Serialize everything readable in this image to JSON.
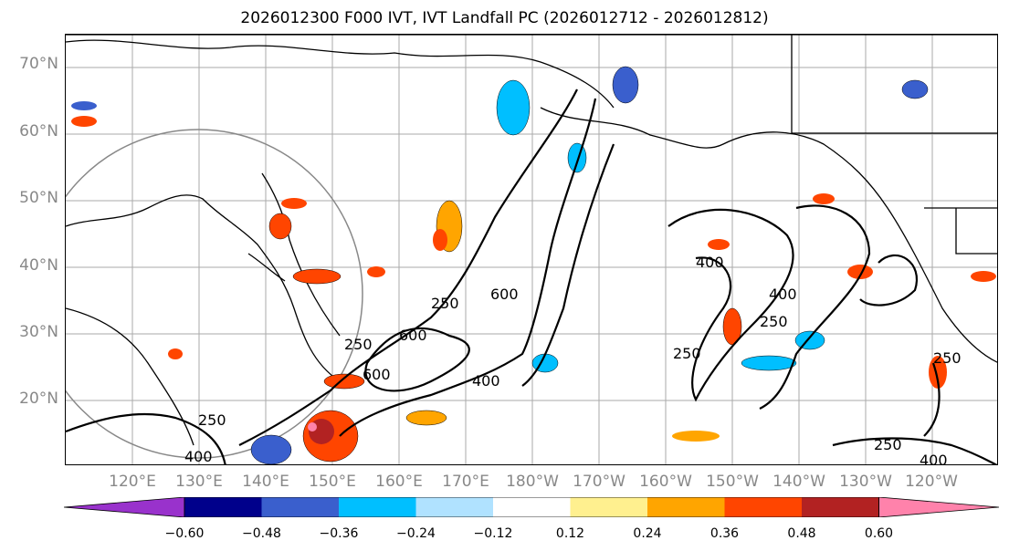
{
  "title": "2026012300 F000 IVT, IVT Landfall PC (2026012712 - 2026012812)",
  "latitude_labels": [
    "70°N",
    "60°N",
    "50°N",
    "40°N",
    "30°N",
    "20°N"
  ],
  "longitude_labels": [
    "120°E",
    "130°E",
    "140°E",
    "150°E",
    "160°E",
    "170°E",
    "180°W",
    "170°W",
    "160°W",
    "150°W",
    "140°W",
    "130°W",
    "120°W"
  ],
  "contour_labels": [
    "250",
    "250",
    "250",
    "250",
    "250",
    "250",
    "400",
    "400",
    "400",
    "400",
    "600",
    "600",
    "600",
    "250",
    "400"
  ],
  "colorbar": {
    "ticks": [
      "−0.60",
      "−0.48",
      "−0.36",
      "−0.24",
      "−0.12",
      "0.12",
      "0.24",
      "0.36",
      "0.48",
      "0.60"
    ],
    "colors": [
      "#9932cc",
      "#00008b",
      "#3a5fcd",
      "#00bfff",
      "#b0e2ff",
      "#ffffff",
      "#fff08f",
      "#ffa500",
      "#ff4500",
      "#b22222",
      "#ff82ab"
    ]
  }
}
